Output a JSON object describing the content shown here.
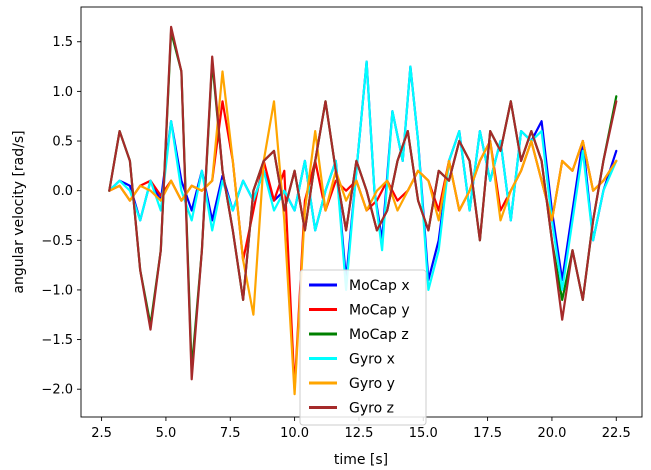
{
  "chart_data": {
    "type": "line",
    "xlabel": "time [s]",
    "ylabel": "angular velocity [rad/s]",
    "xlim": [
      1.7,
      23.5
    ],
    "ylim": [
      -2.28,
      1.85
    ],
    "xticks": [
      2.5,
      5.0,
      7.5,
      10.0,
      12.5,
      15.0,
      17.5,
      20.0,
      22.5
    ],
    "xtick_labels": [
      "2.5",
      "5.0",
      "7.5",
      "10.0",
      "12.5",
      "15.0",
      "17.5",
      "20.0",
      "22.5"
    ],
    "yticks": [
      1.5,
      1.0,
      0.5,
      0.0,
      -0.5,
      -1.0,
      -1.5,
      -2.0
    ],
    "ytick_labels": [
      "1.5",
      "1.0",
      "0.5",
      "0.0",
      "−0.5",
      "−1.0",
      "−1.5",
      "−2.0"
    ],
    "grid": false,
    "legend_position": "lower-center",
    "series": [
      {
        "name": "MoCap x",
        "color": "#0000ff",
        "x": [
          2.8,
          3.2,
          3.6,
          4.0,
          4.4,
          4.8,
          5.2,
          5.6,
          6.0,
          6.4,
          6.8,
          7.2,
          7.6,
          8.0,
          8.4,
          8.8,
          9.2,
          9.6,
          10.0,
          10.4,
          10.8,
          11.2,
          11.6,
          12.0,
          12.4,
          12.8,
          13.1,
          13.4,
          13.8,
          14.2,
          14.5,
          14.8,
          15.2,
          15.6,
          16.0,
          16.4,
          16.8,
          17.2,
          17.6,
          18.0,
          18.4,
          18.8,
          19.2,
          19.6,
          20.0,
          20.4,
          20.8,
          21.2,
          21.6,
          22.0,
          22.5
        ],
        "y": [
          0.0,
          0.1,
          0.05,
          -0.3,
          0.1,
          -0.1,
          0.7,
          0.1,
          -0.2,
          0.2,
          -0.3,
          0.15,
          -0.2,
          0.1,
          -0.1,
          0.2,
          -0.1,
          0.0,
          -0.2,
          0.3,
          -0.4,
          0.0,
          0.3,
          -0.9,
          0.2,
          1.3,
          0.0,
          -0.5,
          0.8,
          0.3,
          1.25,
          0.5,
          -0.9,
          -0.5,
          0.3,
          0.6,
          -0.2,
          0.6,
          0.1,
          0.5,
          -0.3,
          0.6,
          0.5,
          0.7,
          -0.2,
          -0.9,
          -0.2,
          0.5,
          -0.5,
          0.0,
          0.4
        ]
      },
      {
        "name": "MoCap y",
        "color": "#ff0000",
        "x": [
          2.8,
          3.2,
          3.6,
          4.0,
          4.4,
          4.8,
          5.2,
          5.6,
          6.0,
          6.4,
          6.8,
          7.2,
          7.6,
          8.0,
          8.4,
          8.8,
          9.2,
          9.6,
          10.0,
          10.4,
          10.8,
          11.2,
          11.6,
          12.0,
          12.4,
          12.8,
          13.2,
          13.6,
          14.0,
          14.4,
          14.8,
          15.2,
          15.6,
          16.0,
          16.4,
          16.8,
          17.2,
          17.6,
          18.0,
          18.4,
          18.8,
          19.2,
          19.6,
          20.0,
          20.4,
          20.8,
          21.2,
          21.6,
          22.0,
          22.5
        ],
        "y": [
          0.0,
          0.05,
          -0.1,
          0.05,
          0.1,
          -0.05,
          0.1,
          -0.1,
          0.05,
          0.0,
          0.1,
          0.9,
          0.3,
          -0.7,
          -0.2,
          0.3,
          -0.1,
          0.2,
          -2.0,
          -0.1,
          0.3,
          -0.2,
          0.1,
          0.0,
          0.1,
          -0.2,
          -0.1,
          0.1,
          -0.1,
          0.0,
          0.2,
          0.1,
          -0.2,
          0.3,
          -0.2,
          0.0,
          0.3,
          0.5,
          -0.2,
          0.0,
          0.2,
          0.5,
          0.1,
          -0.3,
          0.3,
          0.2,
          0.5,
          0.0,
          0.1,
          0.3
        ]
      },
      {
        "name": "MoCap z",
        "color": "#008000",
        "x": [
          2.8,
          3.2,
          3.6,
          4.0,
          4.4,
          4.8,
          5.2,
          5.6,
          6.0,
          6.4,
          6.8,
          7.2,
          7.6,
          8.0,
          8.4,
          8.8,
          9.2,
          9.6,
          10.0,
          10.4,
          10.8,
          11.2,
          11.6,
          12.0,
          12.4,
          12.8,
          13.2,
          13.6,
          14.0,
          14.4,
          14.8,
          15.2,
          15.6,
          16.0,
          16.4,
          16.8,
          17.2,
          17.6,
          18.0,
          18.4,
          18.8,
          19.2,
          19.6,
          20.0,
          20.4,
          20.8,
          21.2,
          21.6,
          22.0,
          22.5
        ],
        "y": [
          0.0,
          0.6,
          0.3,
          -0.8,
          -1.35,
          -0.6,
          1.6,
          1.2,
          -1.8,
          -0.6,
          1.3,
          0.2,
          -0.4,
          -1.1,
          0.0,
          0.3,
          0.4,
          -0.2,
          0.2,
          -0.4,
          0.3,
          0.9,
          0.2,
          -0.4,
          0.3,
          0.0,
          -0.4,
          -0.2,
          0.3,
          0.6,
          -0.1,
          -0.4,
          0.2,
          0.1,
          0.5,
          0.3,
          -0.5,
          0.6,
          0.4,
          0.9,
          0.3,
          0.6,
          0.3,
          -0.5,
          -1.1,
          -0.6,
          -1.1,
          -0.3,
          0.3,
          0.95
        ]
      },
      {
        "name": "Gyro x",
        "color": "#00ffff",
        "x": [
          2.8,
          3.2,
          3.6,
          4.0,
          4.4,
          4.8,
          5.2,
          5.6,
          6.0,
          6.4,
          6.8,
          7.2,
          7.6,
          8.0,
          8.4,
          8.8,
          9.2,
          9.6,
          10.0,
          10.4,
          10.8,
          11.2,
          11.6,
          12.0,
          12.4,
          12.8,
          13.1,
          13.4,
          13.8,
          14.2,
          14.5,
          14.8,
          15.2,
          15.6,
          16.0,
          16.4,
          16.8,
          17.2,
          17.6,
          18.0,
          18.4,
          18.8,
          19.2,
          19.6,
          20.0,
          20.4,
          20.8,
          21.2,
          21.6,
          22.0,
          22.5
        ],
        "y": [
          0.0,
          0.1,
          0.0,
          -0.3,
          0.1,
          -0.2,
          0.7,
          0.0,
          -0.3,
          0.2,
          -0.4,
          0.1,
          -0.2,
          0.1,
          -0.1,
          0.2,
          -0.2,
          0.0,
          -0.2,
          0.3,
          -0.4,
          0.0,
          0.3,
          -1.0,
          0.2,
          1.3,
          0.0,
          -0.6,
          0.8,
          0.3,
          1.25,
          0.5,
          -1.0,
          -0.6,
          0.3,
          0.6,
          -0.2,
          0.6,
          0.1,
          0.5,
          -0.3,
          0.6,
          0.5,
          0.6,
          -0.3,
          -1.0,
          -0.3,
          0.4,
          -0.5,
          0.0,
          0.3
        ]
      },
      {
        "name": "Gyro y",
        "color": "#ffa500",
        "x": [
          2.8,
          3.2,
          3.6,
          4.0,
          4.4,
          4.8,
          5.2,
          5.6,
          6.0,
          6.4,
          6.8,
          7.2,
          7.6,
          8.0,
          8.4,
          8.8,
          9.2,
          9.6,
          10.0,
          10.4,
          10.8,
          11.2,
          11.6,
          12.0,
          12.4,
          12.8,
          13.2,
          13.6,
          14.0,
          14.4,
          14.8,
          15.2,
          15.6,
          16.0,
          16.4,
          16.8,
          17.2,
          17.6,
          18.0,
          18.4,
          18.8,
          19.2,
          19.6,
          20.0,
          20.4,
          20.8,
          21.2,
          21.6,
          22.0,
          22.5
        ],
        "y": [
          0.0,
          0.05,
          -0.1,
          0.05,
          0.0,
          -0.1,
          0.1,
          -0.1,
          0.05,
          0.0,
          0.1,
          1.2,
          0.3,
          -0.7,
          -1.25,
          0.3,
          0.9,
          -0.3,
          -2.05,
          -0.2,
          0.6,
          -0.2,
          0.2,
          -0.1,
          0.1,
          -0.2,
          0.0,
          0.1,
          -0.2,
          0.0,
          0.2,
          0.1,
          -0.3,
          0.3,
          -0.2,
          0.0,
          0.3,
          0.5,
          -0.3,
          0.0,
          0.2,
          0.5,
          0.1,
          -0.3,
          0.3,
          0.2,
          0.5,
          0.0,
          0.1,
          0.3
        ]
      },
      {
        "name": "Gyro z",
        "color": "#a52a2a",
        "x": [
          2.8,
          3.2,
          3.6,
          4.0,
          4.4,
          4.8,
          5.2,
          5.6,
          6.0,
          6.4,
          6.8,
          7.2,
          7.6,
          8.0,
          8.4,
          8.8,
          9.2,
          9.6,
          10.0,
          10.4,
          10.8,
          11.2,
          11.6,
          12.0,
          12.4,
          12.8,
          13.2,
          13.6,
          14.0,
          14.4,
          14.8,
          15.2,
          15.6,
          16.0,
          16.4,
          16.8,
          17.2,
          17.6,
          18.0,
          18.4,
          18.8,
          19.2,
          19.6,
          20.0,
          20.4,
          20.8,
          21.2,
          21.6,
          22.0,
          22.5
        ],
        "y": [
          0.0,
          0.6,
          0.3,
          -0.8,
          -1.4,
          -0.6,
          1.65,
          1.2,
          -1.9,
          -0.6,
          1.35,
          0.2,
          -0.4,
          -1.1,
          0.0,
          0.3,
          0.4,
          -0.2,
          0.2,
          -0.4,
          0.3,
          0.9,
          0.2,
          -0.4,
          0.3,
          0.0,
          -0.4,
          -0.2,
          0.3,
          0.6,
          -0.1,
          -0.4,
          0.2,
          0.1,
          0.5,
          0.3,
          -0.5,
          0.6,
          0.4,
          0.9,
          0.3,
          0.6,
          0.3,
          -0.5,
          -1.3,
          -0.6,
          -1.1,
          -0.3,
          0.3,
          0.9
        ]
      }
    ]
  }
}
